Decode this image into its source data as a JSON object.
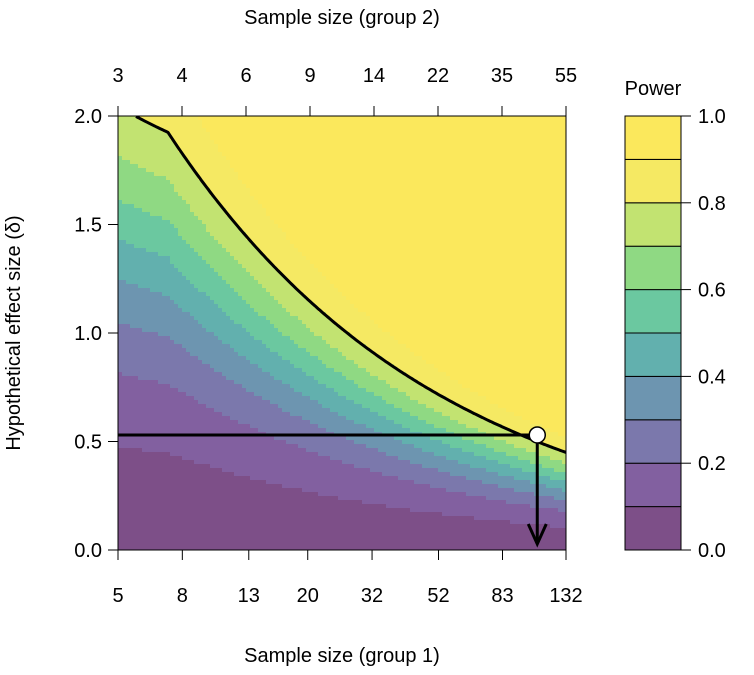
{
  "chart_data": {
    "type": "heatmap",
    "title": "",
    "xlabel_bottom": "Sample size (group 1)",
    "xlabel_top": "Sample size (group 2)",
    "ylabel": "Hypothetical effect size (δ)",
    "x_bottom_ticks": [
      "5",
      "8",
      "13",
      "20",
      "32",
      "52",
      "83",
      "132"
    ],
    "x_top_ticks": [
      "3",
      "4",
      "6",
      "9",
      "14",
      "22",
      "35",
      "55"
    ],
    "y_ticks": [
      "0.0",
      "0.5",
      "1.0",
      "1.5",
      "2.0"
    ],
    "y_tick_values": [
      0,
      0.5,
      1.0,
      1.5,
      2.0
    ],
    "ylim": [
      0,
      2.0
    ],
    "x_scale": "log",
    "colorbar": {
      "title": "Power",
      "tick_labels": [
        "0.0",
        "0.2",
        "0.4",
        "0.6",
        "0.8",
        "1.0"
      ],
      "tick_values": [
        0,
        0.2,
        0.4,
        0.6,
        0.8,
        1.0
      ],
      "levels": [
        0,
        0.1,
        0.2,
        0.3,
        0.4,
        0.5,
        0.6,
        0.7,
        0.8,
        0.9,
        1.0
      ],
      "colors": [
        "#7d4f88",
        "#8260a0",
        "#7b78ac",
        "#6d95b0",
        "#62b0ae",
        "#6bc8a0",
        "#8fd983",
        "#c2e371",
        "#f5e963",
        "#fbe85c"
      ]
    },
    "reference_line": {
      "effect_size": 0.53,
      "n1": 107,
      "curve_power": 0.8
    }
  }
}
